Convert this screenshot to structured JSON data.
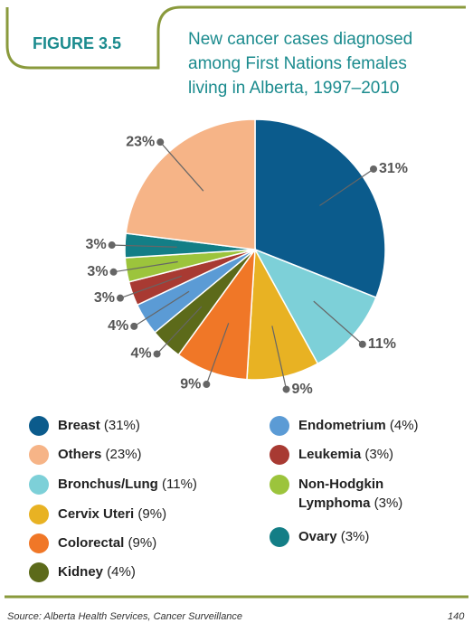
{
  "chart_data": {
    "type": "pie",
    "figure_label": "FIGURE 3.5",
    "title": "New cancer cases diagnosed among First Nations females living in Alberta, 1997–2010",
    "categories": [
      "Breast",
      "Bronchus/Lung",
      "Cervix Uteri",
      "Colorectal",
      "Kidney",
      "Endometrium",
      "Leukemia",
      "Non-Hodgkin Lymphoma",
      "Ovary",
      "Others"
    ],
    "values": [
      31,
      11,
      9,
      9,
      4,
      4,
      3,
      3,
      3,
      23
    ],
    "value_labels": [
      "31%",
      "11%",
      "9%",
      "9%",
      "4%",
      "4%",
      "3%",
      "3%",
      "3%",
      "23%"
    ],
    "legend_labels": [
      "(31%)",
      "(11%)",
      "(9%)",
      "(9%)",
      "(4%)",
      "(4%)",
      "(3%)",
      "(3%)",
      "(3%)",
      "(23%)"
    ],
    "colors": [
      "#0b5b8c",
      "#7dd0d8",
      "#e8b223",
      "#f07727",
      "#5c6a1a",
      "#5b9bd5",
      "#a83a32",
      "#9cc43c",
      "#137e86",
      "#f6b487"
    ],
    "source": "Source: Alberta Health Services, Cancer Surveillance",
    "page_number": "140"
  }
}
